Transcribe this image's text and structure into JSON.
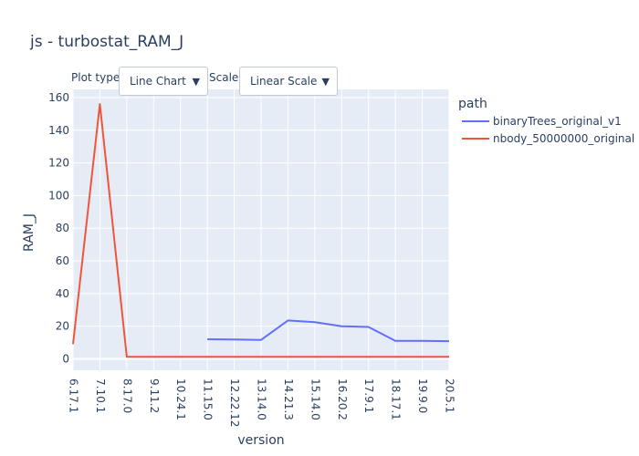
{
  "controls": {
    "plot_type_label": "Plot type:",
    "plot_type_value": "Line Chart",
    "scale_label": "Scale:",
    "scale_value": "Linear Scale",
    "arrow_glyph": "▼"
  },
  "colors": {
    "plot_bg": "#e5ecf6",
    "grid": "#ffffff",
    "text": "#2a3f5f",
    "series1": "#636efa",
    "series2": "#ef553b"
  },
  "chart_data": {
    "type": "line",
    "title": "js - turbostat_RAM_J",
    "xlabel": "version",
    "ylabel": "RAM_J",
    "legend_title": "path",
    "legend_position": "top-right",
    "grid": true,
    "categories": [
      "6.17.1",
      "7.10.1",
      "8.17.0",
      "9.11.2",
      "10.24.1",
      "11.15.0",
      "12.22.12",
      "13.14.0",
      "14.21.3",
      "15.14.0",
      "16.20.2",
      "17.9.1",
      "18.17.1",
      "19.9.0",
      "20.5.1"
    ],
    "ylim": [
      -7,
      165
    ],
    "yticks": [
      0,
      20,
      40,
      60,
      80,
      100,
      120,
      140,
      160
    ],
    "series": [
      {
        "name": "binaryTrees_original_v1",
        "color": "#636efa",
        "values": [
          null,
          null,
          null,
          null,
          null,
          12,
          11.8,
          11.6,
          23.5,
          22.5,
          20,
          19.5,
          11,
          11,
          10.8
        ]
      },
      {
        "name": "nbody_50000000_original",
        "color": "#ef553b",
        "values": [
          9,
          156,
          1.2,
          1.2,
          1.2,
          1.2,
          1.2,
          1.2,
          1.2,
          1.2,
          1.2,
          1.2,
          1.2,
          1.2,
          1.2
        ]
      }
    ]
  }
}
